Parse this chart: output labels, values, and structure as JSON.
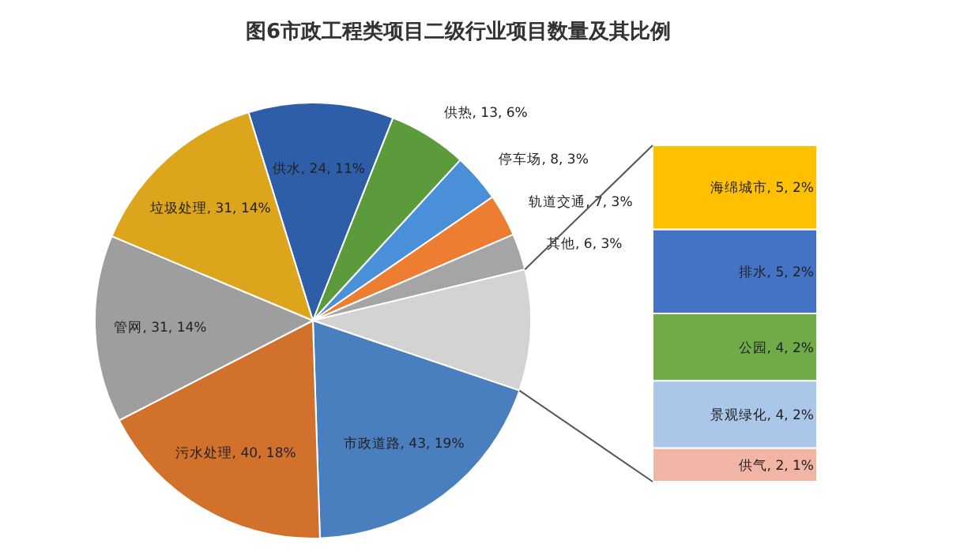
{
  "chart_data": [
    {
      "type": "pie",
      "title": "图6市政工程类项目二级行业项目数量及其比例",
      "categories": [
        "供水",
        "供热",
        "停车场",
        "轨道交通",
        "其他",
        null,
        "市政道路",
        "污水处理",
        "管网",
        "垃圾处理"
      ],
      "values": [
        24,
        13,
        8,
        7,
        6,
        20,
        43,
        40,
        31,
        31
      ],
      "value_labels": [
        "24, 11%",
        "13, 6%",
        "8, 3%",
        "7, 3%",
        "6, 3%",
        null,
        "43, 19%",
        "40, 18%",
        "31, 14%",
        "31, 14%"
      ],
      "colors": [
        "#2e5ea8",
        "#5b9b3c",
        "#4a90d9",
        "#ed7d31",
        "#a5a5a5",
        "#d3d3d3",
        "#4a7fbf",
        "#d2712c",
        "#9e9e9e",
        "#dca51c"
      ]
    },
    {
      "type": "bar",
      "stacked": true,
      "categories": [
        null
      ],
      "series": [
        {
          "color": "#f2b5a5",
          "values": [
            2
          ],
          "value_labels": [
            "供气, 2, 1%"
          ]
        },
        {
          "color": "#aac6e8",
          "values": [
            4
          ],
          "value_labels": [
            "景观绿化, 4, 2%"
          ]
        },
        {
          "color": "#6fac47",
          "values": [
            4
          ],
          "value_labels": [
            "公园, 4, 2%"
          ]
        },
        {
          "color": "#4472c4",
          "values": [
            5
          ],
          "value_labels": [
            "排水, 5, 2%"
          ]
        },
        {
          "color": "#ffc000",
          "values": [
            5
          ],
          "value_labels": [
            "海绵城市, 5, 2%"
          ]
        }
      ]
    }
  ]
}
